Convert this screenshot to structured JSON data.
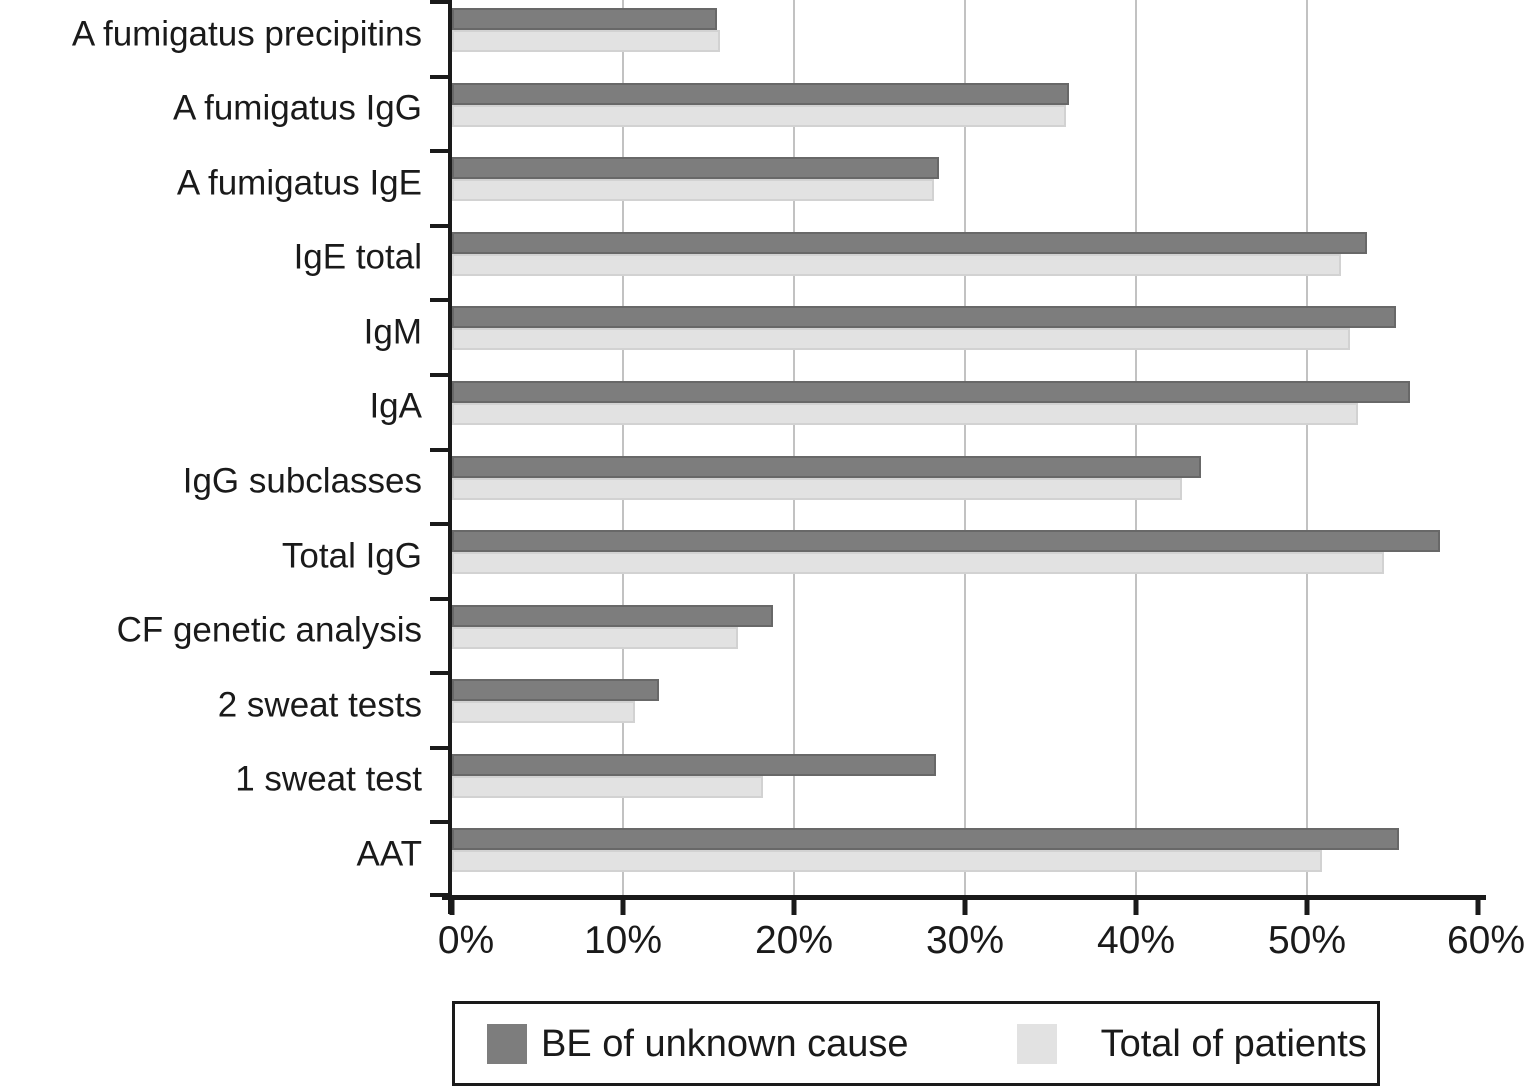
{
  "chart_data": {
    "type": "bar",
    "orientation": "horizontal",
    "unit": "percent",
    "title": "",
    "xlabel": "",
    "ylabel": "",
    "xlim": [
      0,
      60
    ],
    "x_tick_values": [
      0,
      10,
      20,
      30,
      40,
      50,
      60
    ],
    "x_tick_labels": [
      "0%",
      "10%",
      "20%",
      "30%",
      "40%",
      "50%",
      "60%"
    ],
    "x_gridline_values": [
      10,
      20,
      30,
      40,
      50
    ],
    "grid": true,
    "legend_position": "bottom",
    "background_color": "#ffffff",
    "axis_color": "#1a1a1a",
    "gridline_color": "#c2c2c2",
    "categories": [
      "A fumigatus precipitins",
      "A fumigatus IgG",
      "A fumigatus IgE",
      "IgE total",
      "IgM",
      "IgA",
      "IgG subclasses",
      "Total IgG",
      "CF genetic analysis",
      "2 sweat tests",
      "1 sweat test",
      "AAT"
    ],
    "series": [
      {
        "name": "BE of unknown cause",
        "color": "#7d7d7d",
        "border_color": "#686868",
        "values": [
          15.5,
          36.1,
          28.5,
          53.5,
          55.2,
          56.0,
          43.8,
          57.8,
          18.8,
          12.1,
          28.3,
          55.4
        ]
      },
      {
        "name": "Total of patients",
        "color": "#e2e2e2",
        "border_color": "#d2d2d2",
        "values": [
          15.7,
          35.9,
          28.2,
          52.0,
          52.5,
          53.0,
          42.7,
          54.5,
          16.7,
          10.7,
          18.2,
          50.9
        ]
      }
    ]
  }
}
